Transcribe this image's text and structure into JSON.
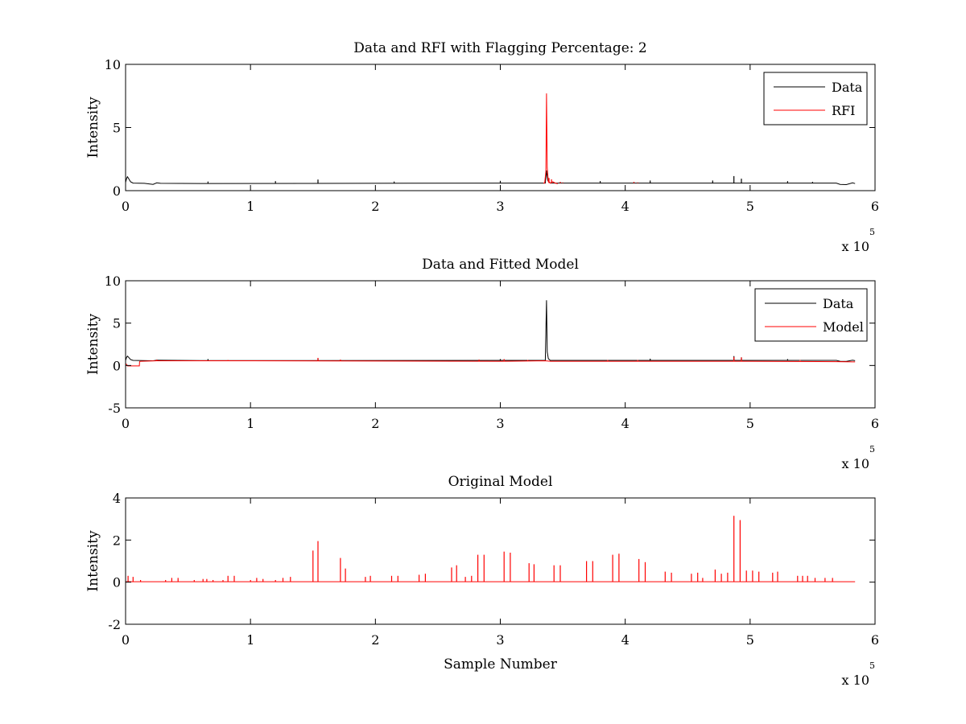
{
  "figure": {
    "background": "#ffffff"
  },
  "chart_data": [
    {
      "type": "line",
      "title": "Data and RFI with Flagging Percentage: 2",
      "xlabel": "",
      "ylabel": "Intensity",
      "xlim": [
        0,
        600000
      ],
      "ylim": [
        0,
        10
      ],
      "xticks": [
        0,
        1,
        2,
        3,
        4,
        5,
        6
      ],
      "yticks": [
        0,
        5,
        10
      ],
      "x_exponent_label": "x 10",
      "x_exponent": "5",
      "legend": {
        "location": "top-right",
        "entries": [
          {
            "label": "Data",
            "color": "#000000"
          },
          {
            "label": "RFI",
            "color": "#ff0000"
          }
        ]
      },
      "series": [
        {
          "name": "Data",
          "color": "#000000",
          "baseline": 0.6,
          "points": [
            [
              0,
              0.65
            ],
            [
              800,
              0.95
            ],
            [
              1500,
              1.1
            ],
            [
              2500,
              0.95
            ],
            [
              4000,
              0.7
            ],
            [
              6000,
              0.6
            ],
            [
              15000,
              0.58
            ],
            [
              22000,
              0.5
            ],
            [
              25000,
              0.62
            ],
            [
              28000,
              0.58
            ],
            [
              60000,
              0.57
            ],
            [
              336000,
              0.6
            ],
            [
              337000,
              1.6
            ],
            [
              338000,
              0.8
            ],
            [
              340000,
              0.6
            ],
            [
              569000,
              0.6
            ],
            [
              572000,
              0.5
            ],
            [
              577000,
              0.48
            ],
            [
              582000,
              0.62
            ],
            [
              584000,
              0.56
            ]
          ],
          "spikes": [
            [
              66000,
              0.72
            ],
            [
              120000,
              0.75
            ],
            [
              154000,
              0.88
            ],
            [
              215000,
              0.72
            ],
            [
              300000,
              0.78
            ],
            [
              380000,
              0.76
            ],
            [
              420000,
              0.8
            ],
            [
              470000,
              0.8
            ],
            [
              487000,
              1.15
            ],
            [
              493000,
              0.95
            ],
            [
              530000,
              0.75
            ],
            [
              550000,
              0.7
            ]
          ]
        },
        {
          "name": "RFI",
          "color": "#ff0000",
          "baseline": 0.6,
          "points": [
            [
              334500,
              0.6
            ],
            [
              335500,
              0.6
            ],
            [
              336500,
              1.5
            ],
            [
              337000,
              7.7
            ],
            [
              337600,
              1.8
            ],
            [
              338500,
              0.7
            ],
            [
              340000,
              0.6
            ],
            [
              342000,
              0.7
            ],
            [
              344000,
              0.6
            ],
            [
              346000,
              0.55
            ]
          ],
          "spikes": [
            [
              339000,
              1.0
            ],
            [
              341000,
              0.9
            ],
            [
              348000,
              0.7
            ],
            [
              350000,
              0.65
            ],
            [
              407000,
              0.7
            ],
            [
              410000,
              0.65
            ]
          ]
        }
      ]
    },
    {
      "type": "line",
      "title": "Data and Fitted Model",
      "xlabel": "",
      "ylabel": "Intensity",
      "xlim": [
        0,
        600000
      ],
      "ylim": [
        -5,
        10
      ],
      "xticks": [
        0,
        1,
        2,
        3,
        4,
        5,
        6
      ],
      "yticks": [
        -5,
        0,
        5,
        10
      ],
      "x_exponent_label": "x 10",
      "x_exponent": "5",
      "legend": {
        "location": "top-right",
        "entries": [
          {
            "label": "Data",
            "color": "#000000"
          },
          {
            "label": "Model",
            "color": "#ff0000"
          }
        ]
      },
      "series": [
        {
          "name": "Data",
          "color": "#000000",
          "baseline": 0.6,
          "points": [
            [
              0,
              0.6
            ],
            [
              800,
              0.95
            ],
            [
              1500,
              1.1
            ],
            [
              2500,
              0.95
            ],
            [
              4000,
              0.7
            ],
            [
              6000,
              0.6
            ],
            [
              22000,
              0.55
            ],
            [
              25000,
              0.62
            ],
            [
              60000,
              0.57
            ],
            [
              336000,
              0.6
            ],
            [
              337000,
              7.7
            ],
            [
              337600,
              1.6
            ],
            [
              338500,
              0.8
            ],
            [
              340000,
              0.6
            ],
            [
              569000,
              0.6
            ],
            [
              572000,
              0.5
            ],
            [
              577000,
              0.48
            ],
            [
              582000,
              0.62
            ],
            [
              584000,
              0.56
            ]
          ],
          "spikes": [
            [
              66000,
              0.75
            ],
            [
              154000,
              0.85
            ],
            [
              300000,
              0.75
            ],
            [
              420000,
              0.8
            ],
            [
              487000,
              1.1
            ],
            [
              493000,
              0.95
            ],
            [
              530000,
              0.75
            ]
          ]
        },
        {
          "name": "Model",
          "color": "#ff0000",
          "baseline": 0.55,
          "points": [
            [
              0,
              0.2
            ],
            [
              1000,
              0.1
            ],
            [
              1500,
              -0.05
            ],
            [
              11000,
              -0.05
            ],
            [
              11200,
              0.45
            ],
            [
              12000,
              0.5
            ],
            [
              25000,
              0.55
            ],
            [
              100000,
              0.55
            ],
            [
              300000,
              0.5
            ],
            [
              336000,
              0.55
            ],
            [
              340000,
              0.5
            ],
            [
              500000,
              0.5
            ],
            [
              570000,
              0.45
            ],
            [
              584000,
              0.42
            ]
          ],
          "spikes": [
            [
              25000,
              0.7
            ],
            [
              82000,
              0.65
            ],
            [
              154000,
              0.9
            ],
            [
              172000,
              0.7
            ],
            [
              283000,
              0.7
            ],
            [
              303000,
              0.75
            ],
            [
              322000,
              0.65
            ],
            [
              386000,
              0.65
            ],
            [
              410000,
              0.65
            ],
            [
              487000,
              1.0
            ],
            [
              493000,
              0.95
            ],
            [
              540000,
              0.65
            ]
          ]
        }
      ]
    },
    {
      "type": "line",
      "title": "Original Model",
      "xlabel": "Sample Number",
      "ylabel": "Intensity",
      "xlim": [
        0,
        600000
      ],
      "ylim": [
        -2,
        4
      ],
      "xticks": [
        0,
        1,
        2,
        3,
        4,
        5,
        6
      ],
      "yticks": [
        -2,
        0,
        2,
        4
      ],
      "x_exponent_label": "x 10",
      "x_exponent": "5",
      "series": [
        {
          "color": "#ff0000",
          "baseline": 0.02,
          "points": [
            [
              0,
              0.02
            ],
            [
              584000,
              0.02
            ]
          ],
          "spikes": [
            [
              2000,
              0.3
            ],
            [
              6000,
              0.25
            ],
            [
              12000,
              0.1
            ],
            [
              32000,
              0.1
            ],
            [
              37000,
              0.2
            ],
            [
              42000,
              0.2
            ],
            [
              55000,
              0.1
            ],
            [
              62000,
              0.15
            ],
            [
              65000,
              0.15
            ],
            [
              70000,
              0.1
            ],
            [
              78000,
              0.1
            ],
            [
              82000,
              0.3
            ],
            [
              87000,
              0.3
            ],
            [
              100000,
              0.1
            ],
            [
              105000,
              0.2
            ],
            [
              110000,
              0.15
            ],
            [
              120000,
              0.1
            ],
            [
              126000,
              0.2
            ],
            [
              132000,
              0.25
            ],
            [
              150000,
              1.5
            ],
            [
              154000,
              1.95
            ],
            [
              172000,
              1.15
            ],
            [
              176000,
              0.65
            ],
            [
              192000,
              0.25
            ],
            [
              196000,
              0.3
            ],
            [
              213000,
              0.3
            ],
            [
              218000,
              0.3
            ],
            [
              235000,
              0.35
            ],
            [
              240000,
              0.4
            ],
            [
              261000,
              0.7
            ],
            [
              265000,
              0.8
            ],
            [
              272000,
              0.25
            ],
            [
              277000,
              0.3
            ],
            [
              282000,
              1.3
            ],
            [
              287000,
              1.3
            ],
            [
              303000,
              1.45
            ],
            [
              308000,
              1.4
            ],
            [
              323000,
              0.9
            ],
            [
              327000,
              0.85
            ],
            [
              343000,
              0.8
            ],
            [
              348000,
              0.8
            ],
            [
              369000,
              1.0
            ],
            [
              374000,
              1.0
            ],
            [
              390000,
              1.3
            ],
            [
              395000,
              1.35
            ],
            [
              411000,
              1.1
            ],
            [
              416000,
              0.95
            ],
            [
              432000,
              0.5
            ],
            [
              437000,
              0.45
            ],
            [
              453000,
              0.4
            ],
            [
              458000,
              0.45
            ],
            [
              462000,
              0.2
            ],
            [
              472000,
              0.6
            ],
            [
              477000,
              0.4
            ],
            [
              482000,
              0.45
            ],
            [
              487000,
              3.15
            ],
            [
              492000,
              2.95
            ],
            [
              497000,
              0.55
            ],
            [
              502000,
              0.55
            ],
            [
              507000,
              0.5
            ],
            [
              518000,
              0.45
            ],
            [
              522000,
              0.5
            ],
            [
              538000,
              0.3
            ],
            [
              542000,
              0.3
            ],
            [
              546000,
              0.3
            ],
            [
              552000,
              0.2
            ],
            [
              560000,
              0.2
            ],
            [
              566000,
              0.2
            ]
          ]
        }
      ]
    }
  ]
}
